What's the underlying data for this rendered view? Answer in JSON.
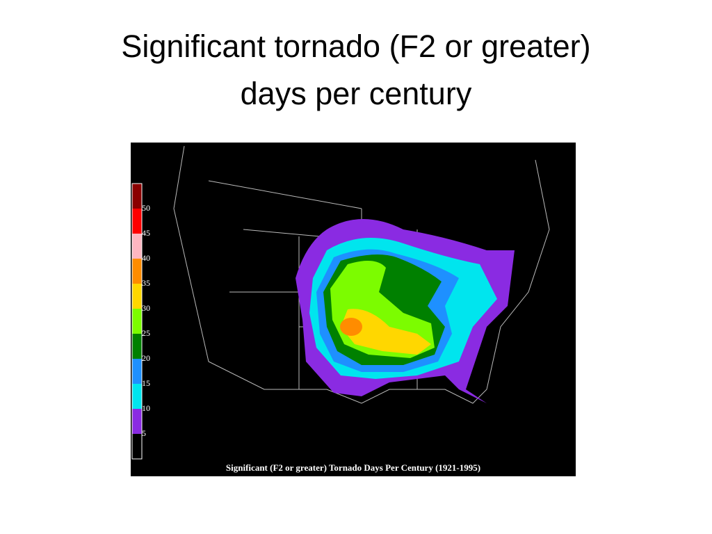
{
  "title": [
    "Significant tornado (F2 or greater)",
    "days per century"
  ],
  "map": {
    "caption": "Significant (F2 or greater) Tornado Days Per Century (1921-1995)",
    "legend": {
      "ticks": [
        5,
        10,
        15,
        20,
        25,
        30,
        35,
        40,
        45,
        50
      ],
      "colors": [
        "#000000",
        "#8a2be2",
        "#00e5ee",
        "#1e90ff",
        "#008000",
        "#7cfc00",
        "#ffd700",
        "#ff8c00",
        "#ffb6c1",
        "#ff0000",
        "#8b0000"
      ]
    }
  }
}
